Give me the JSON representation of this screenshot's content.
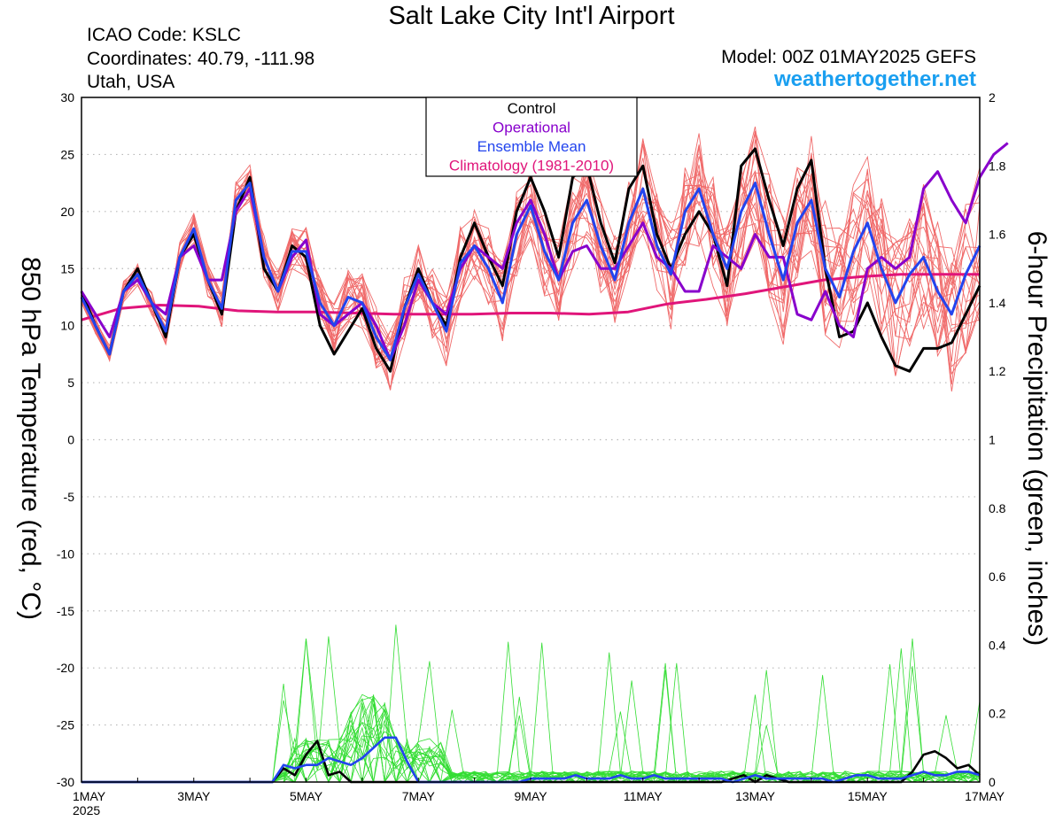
{
  "header": {
    "title": "Salt Lake City Int'l Airport",
    "icao": "ICAO Code: KSLC",
    "coords": "Coordinates: 40.79, -111.98",
    "region": "Utah, USA",
    "model": "Model: 00Z 01MAY2025 GEFS",
    "site": "weathertogether.net"
  },
  "chart_data": {
    "type": "line",
    "ylabel": "850 hPa Temperature (red, °C)",
    "y2label": "6-hour Precipitation (green, inches)",
    "ylim": [
      -30,
      30
    ],
    "y2lim": [
      0,
      2
    ],
    "x_unit": "days since 1MAY 2025 00Z",
    "xlim": [
      0,
      16
    ],
    "x_ticks": [
      {
        "x": 0,
        "label": "1MAY",
        "sub": "2025"
      },
      {
        "x": 2,
        "label": "3MAY"
      },
      {
        "x": 4,
        "label": "5MAY"
      },
      {
        "x": 6,
        "label": "7MAY"
      },
      {
        "x": 8,
        "label": "9MAY"
      },
      {
        "x": 10,
        "label": "11MAY"
      },
      {
        "x": 12,
        "label": "13MAY"
      },
      {
        "x": 14,
        "label": "15MAY"
      },
      {
        "x": 16,
        "label": "17MAY"
      }
    ],
    "y_ticks": [
      30,
      25,
      20,
      15,
      10,
      5,
      0,
      -5,
      -10,
      -15,
      -20,
      -25,
      -30
    ],
    "y2_ticks": [
      "2",
      "1.8",
      "1.6",
      "1.4",
      "1.2",
      "1",
      "0.8",
      "0.6",
      "0.4",
      "0.2",
      "0"
    ],
    "grid": true,
    "legend": {
      "placement": "top-center",
      "items": [
        {
          "label": "Control",
          "color": "#000000"
        },
        {
          "label": "Operational",
          "color": "#8800cc"
        },
        {
          "label": "Ensemble Mean",
          "color": "#2244ee"
        },
        {
          "label": "Climatology (1981-2010)",
          "color": "#e0157a"
        }
      ]
    },
    "colors": {
      "members_temp": "#f06a6a",
      "members_precip": "#33dd33",
      "control": "#000000",
      "operational": "#8800cc",
      "mean": "#2244ee",
      "climatology": "#e0157a"
    },
    "temperature_series": [
      {
        "name": "Control",
        "values": [
          13,
          10,
          7.5,
          13,
          15,
          12,
          9,
          16,
          18,
          14,
          11,
          20,
          23,
          15,
          13,
          17,
          16,
          10,
          7.5,
          9.5,
          11.5,
          8,
          6,
          11.5,
          15,
          12,
          10,
          16,
          19,
          16,
          13.5,
          20,
          23,
          20,
          16,
          23,
          24,
          19,
          15.5,
          22,
          24,
          18,
          15,
          18,
          20,
          18,
          13.5,
          24,
          25.5,
          21,
          17,
          22,
          24.5,
          15,
          9,
          9.5,
          12,
          9,
          6.5,
          6,
          8,
          8,
          8.5,
          11,
          13.5
        ]
      },
      {
        "name": "Operational",
        "values": [
          13,
          11,
          9,
          13,
          14,
          12,
          11,
          16,
          17,
          14,
          14,
          20,
          22,
          16,
          13,
          16,
          17.5,
          11,
          10,
          11,
          12,
          10,
          7,
          10,
          14,
          12,
          11,
          15,
          17,
          16,
          15,
          19,
          21,
          18,
          14,
          16.5,
          17,
          15,
          15,
          17,
          19,
          16,
          15,
          13,
          13,
          17,
          16,
          15,
          18,
          16,
          16,
          11,
          10.5,
          13,
          10,
          9,
          15,
          16,
          15,
          16,
          22,
          23.5,
          21,
          19,
          23,
          25,
          26
        ]
      },
      {
        "name": "Ensemble Mean",
        "values": [
          12.5,
          10,
          7.5,
          13,
          14.5,
          12,
          9.5,
          16,
          18.5,
          14,
          11.5,
          21,
          22.5,
          16,
          13,
          16.5,
          16.5,
          12,
          10,
          12.5,
          12,
          9,
          7,
          11.5,
          14.5,
          12,
          9.5,
          15.5,
          17,
          15,
          12,
          18,
          20.5,
          16.5,
          14,
          19,
          21,
          17,
          14,
          19,
          22,
          17,
          14.5,
          20,
          22,
          18,
          15,
          20,
          22.5,
          18,
          14,
          19,
          21,
          15,
          12.5,
          16.5,
          19,
          15,
          12,
          14.5,
          16,
          13,
          11,
          14.5,
          17
        ]
      },
      {
        "name": "Climatology (1981-2010)",
        "values": [
          10.5,
          11.5,
          11.8,
          11.7,
          11.3,
          11.2,
          11.2,
          11.1,
          11.0,
          11.0,
          11.0,
          11.1,
          11.1,
          11.0,
          11.2,
          11.9,
          12.3,
          12.8,
          13.4,
          14.0,
          14.3,
          14.5,
          14.5,
          14.5
        ]
      }
    ],
    "precip_series": [
      {
        "name": "Control",
        "values": [
          0,
          0,
          0,
          0,
          0,
          0,
          0,
          0,
          0,
          0,
          0,
          0,
          0,
          0,
          0,
          0,
          0,
          0,
          0.04,
          0.02,
          0.08,
          0.12,
          0.02,
          0.03,
          0,
          0,
          0,
          0,
          0,
          0,
          0,
          0,
          0,
          0,
          0,
          0,
          0,
          0,
          0,
          0,
          0,
          0,
          0,
          0,
          0,
          0,
          0,
          0,
          0,
          0,
          0,
          0,
          0,
          0,
          0,
          0,
          0,
          0,
          0.01,
          0.02,
          0,
          0.02,
          0.01,
          0,
          0,
          0,
          0,
          0,
          0,
          0,
          0,
          0,
          0,
          0,
          0.03,
          0.08,
          0.09,
          0.07,
          0.04,
          0.05,
          0.02
        ]
      },
      {
        "name": "Ensemble Mean",
        "values": [
          0,
          0,
          0,
          0,
          0,
          0,
          0,
          0,
          0,
          0,
          0,
          0,
          0,
          0,
          0,
          0,
          0,
          0,
          0.05,
          0.04,
          0.05,
          0.05,
          0.07,
          0.06,
          0.05,
          0.07,
          0.1,
          0.13,
          0.13,
          0.06,
          0,
          0,
          0,
          0,
          0,
          0,
          0,
          0,
          0,
          0,
          0.01,
          0.01,
          0.01,
          0.01,
          0.02,
          0.01,
          0.01,
          0.01,
          0.02,
          0.01,
          0.01,
          0.02,
          0.01,
          0.01,
          0.01,
          0.01,
          0.01,
          0.01,
          0,
          0.01,
          0.02,
          0.01,
          0.01,
          0.01,
          0.01,
          0.01,
          0.01,
          0,
          0.01,
          0.02,
          0.02,
          0.01,
          0.01,
          0.01,
          0.02,
          0.03,
          0.02,
          0.02,
          0.03,
          0.03,
          0.02
        ]
      }
    ]
  }
}
